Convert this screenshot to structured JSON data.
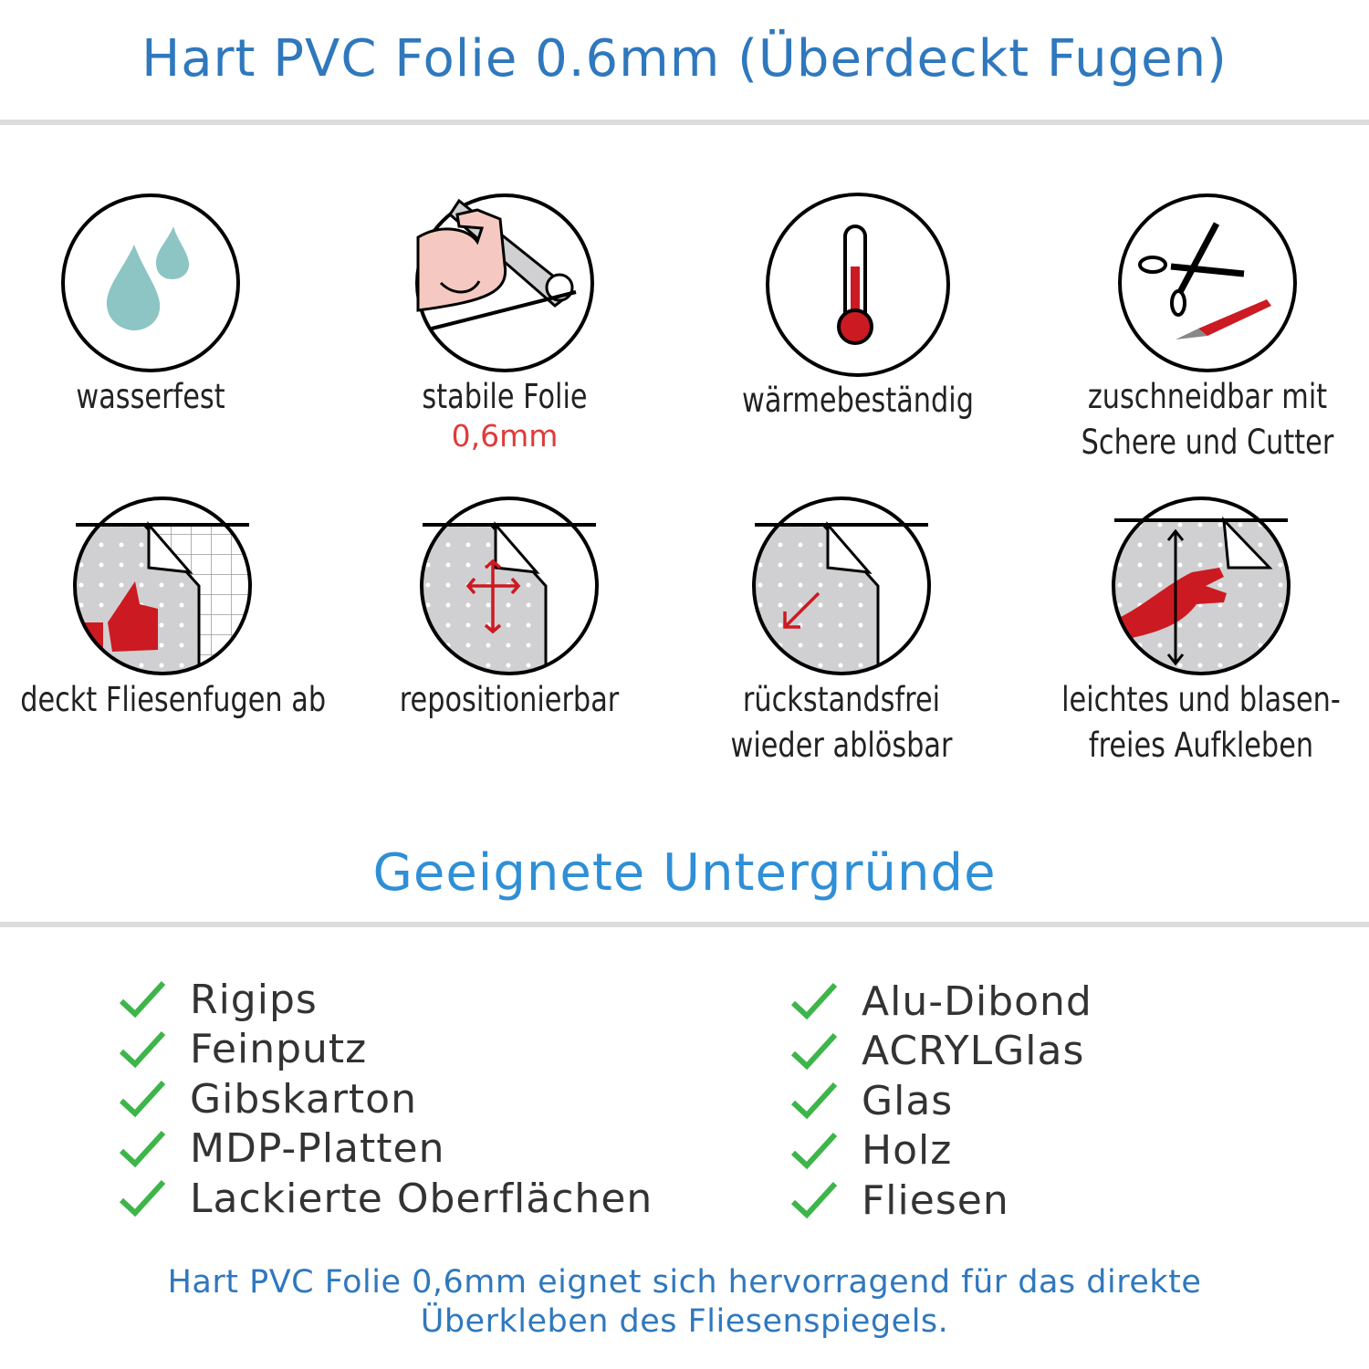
{
  "header": {
    "title": "Hart PVC Folie 0.6mm (Überdeckt Fugen)"
  },
  "features": [
    {
      "icon": "water-drops-icon",
      "label": "wasserfest"
    },
    {
      "icon": "strong-arm-icon",
      "label": "stabile Folie",
      "sublabel": "0,6mm"
    },
    {
      "icon": "thermometer-icon",
      "label": "wärmebeständig"
    },
    {
      "icon": "scissors-cutter-icon",
      "label": "zuschneidbar mit",
      "label2": "Schere und Cutter"
    },
    {
      "icon": "thumbs-up-tiles-icon",
      "label": "deckt Fliesenfugen ab"
    },
    {
      "icon": "move-arrows-icon",
      "label": "repositionierbar"
    },
    {
      "icon": "peel-arrow-icon",
      "label": "rückstandsfrei",
      "label2": "wieder ablösbar"
    },
    {
      "icon": "hand-smooth-icon",
      "label": "leichtes und blasen-",
      "label2": "freies Aufkleben"
    }
  ],
  "section": {
    "title": "Geeignete Untergründe"
  },
  "surfaces_left": [
    "Rigips",
    "Feinputz",
    "Gibskarton",
    "MDP-Platten",
    "Lackierte Oberflächen"
  ],
  "surfaces_right": [
    "Alu-Dibond",
    "ACRYLGlas",
    "Glas",
    "Holz",
    "Fliesen"
  ],
  "footer": {
    "line1": "Hart PVC Folie 0,6mm eignet sich hervorragend für das direkte",
    "line2": "Überkleben des Fliesenspiegels."
  },
  "colors": {
    "title": "#2f78bd",
    "section": "#2f8fd6",
    "check": "#3db54a",
    "accent_red": "#cc1a22",
    "drop": "#8cc5c4"
  }
}
